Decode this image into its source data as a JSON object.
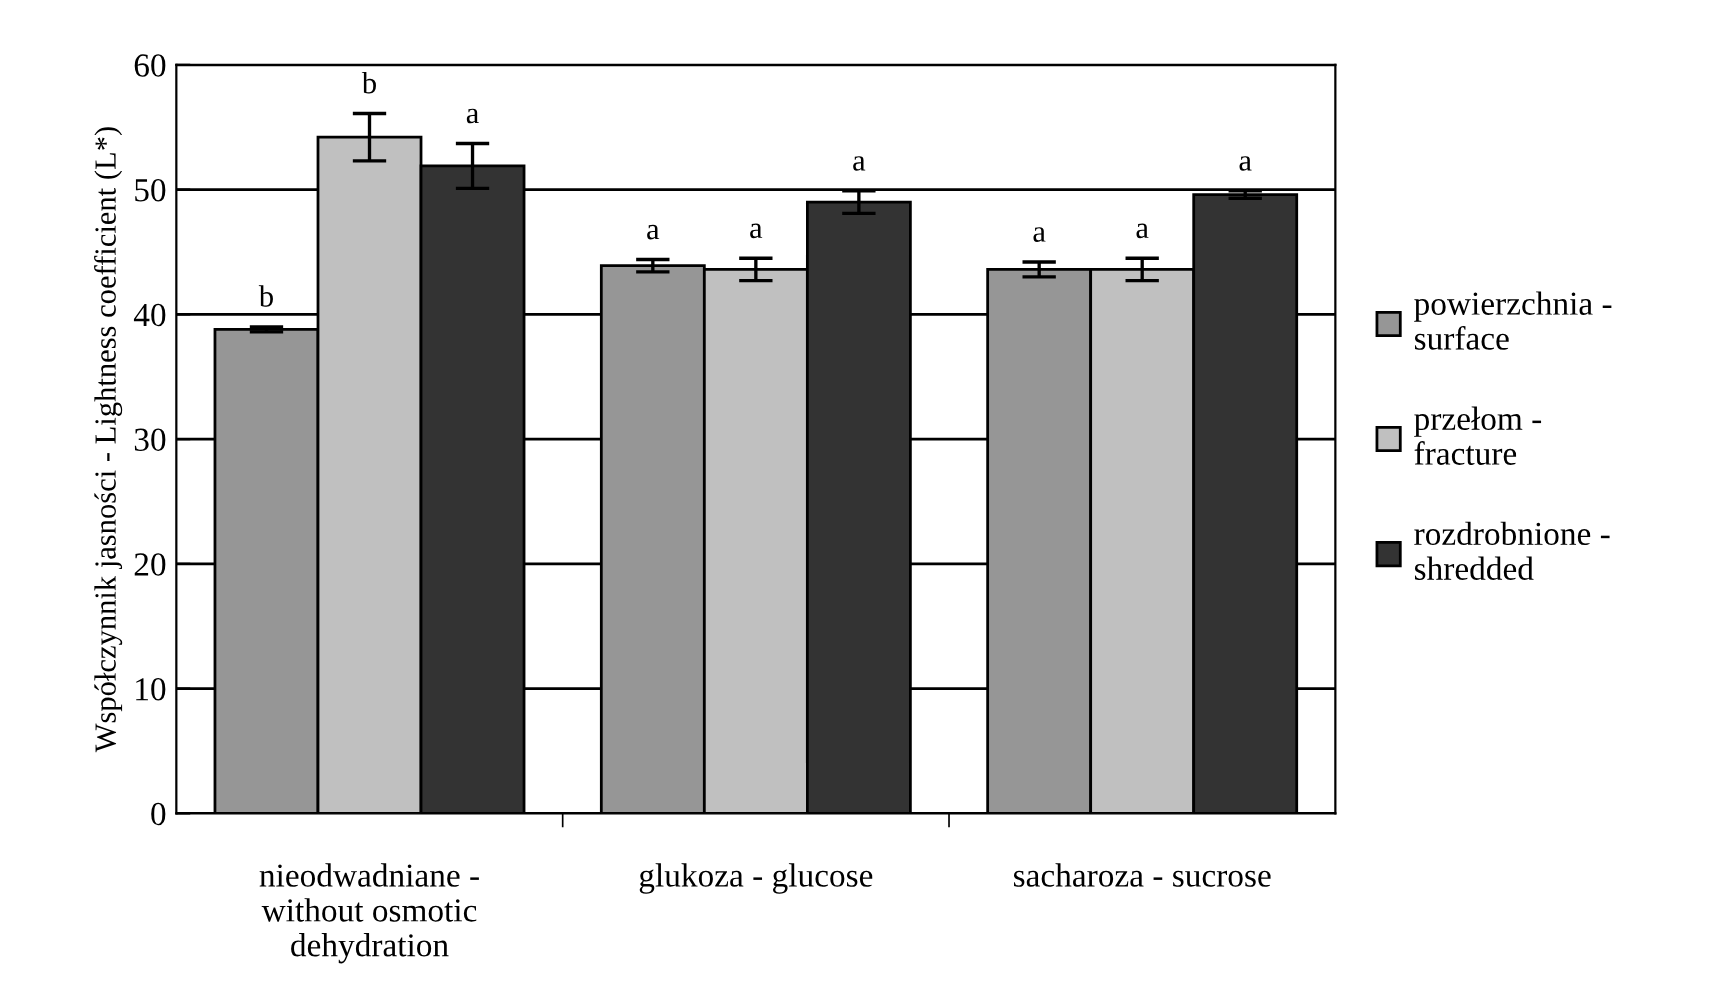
{
  "chart_data": {
    "type": "bar",
    "ylabel": "Współczynnik jasności - Lightness coefficient (L*)",
    "categories": [
      "nieodwadniane -\nwithout osmotic\ndehydration",
      "glukoza - glucose",
      "sacharoza - sucrose"
    ],
    "series": [
      {
        "name": "powierzchnia -\nsurface",
        "color": "#969696",
        "values": [
          38.8,
          43.9,
          43.6
        ],
        "errors": [
          0.2,
          0.5,
          0.6
        ],
        "value_labels": [
          "b",
          "a",
          "a"
        ]
      },
      {
        "name": "przełom -\nfracture",
        "color": "#c0c0c0",
        "values": [
          54.2,
          43.6,
          43.6
        ],
        "errors": [
          1.9,
          0.9,
          0.9
        ],
        "value_labels": [
          "b",
          "a",
          "a"
        ]
      },
      {
        "name": "rozdrobnione -\nshredded",
        "color": "#333333",
        "values": [
          51.9,
          49.0,
          49.6
        ],
        "errors": [
          1.8,
          0.9,
          0.3
        ],
        "value_labels": [
          "a",
          "a",
          "a"
        ]
      }
    ],
    "ylim": [
      0,
      60
    ],
    "yticks": [
      0,
      10,
      20,
      30,
      40,
      50,
      60
    ],
    "grid": "y",
    "legend": "right"
  }
}
